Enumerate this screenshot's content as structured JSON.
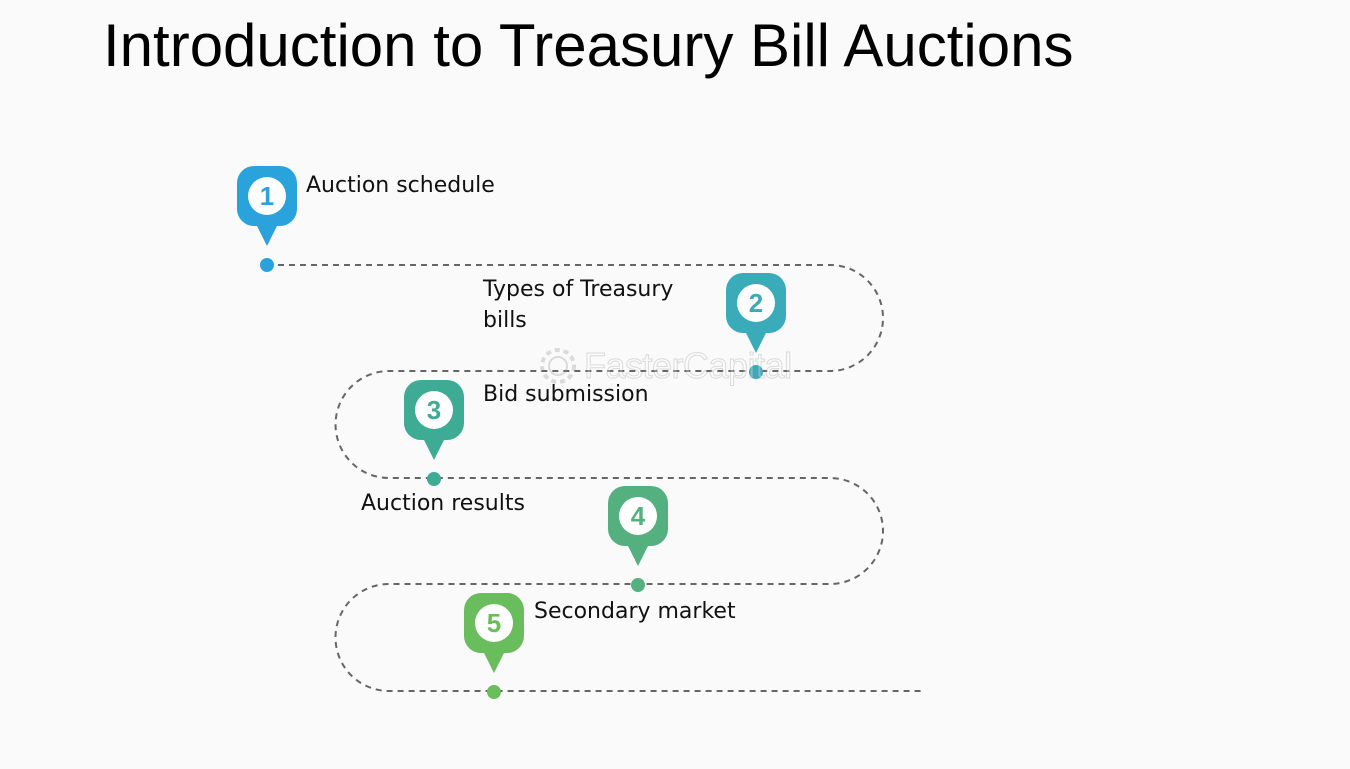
{
  "title": "Introduction to Treasury Bill Auctions",
  "steps": [
    {
      "number": "1",
      "label": "Auction schedule",
      "color": "#2aa3dd"
    },
    {
      "number": "2",
      "label": "Types of Treasury bills",
      "color": "#3aabb8"
    },
    {
      "number": "3",
      "label": "Bid submission",
      "color": "#3eab95"
    },
    {
      "number": "4",
      "label": "Auction results",
      "color": "#55b07f"
    },
    {
      "number": "5",
      "label": "Secondary market",
      "color": "#6abd5c"
    }
  ],
  "path_color": "#666666",
  "watermark": "FasterCapital"
}
